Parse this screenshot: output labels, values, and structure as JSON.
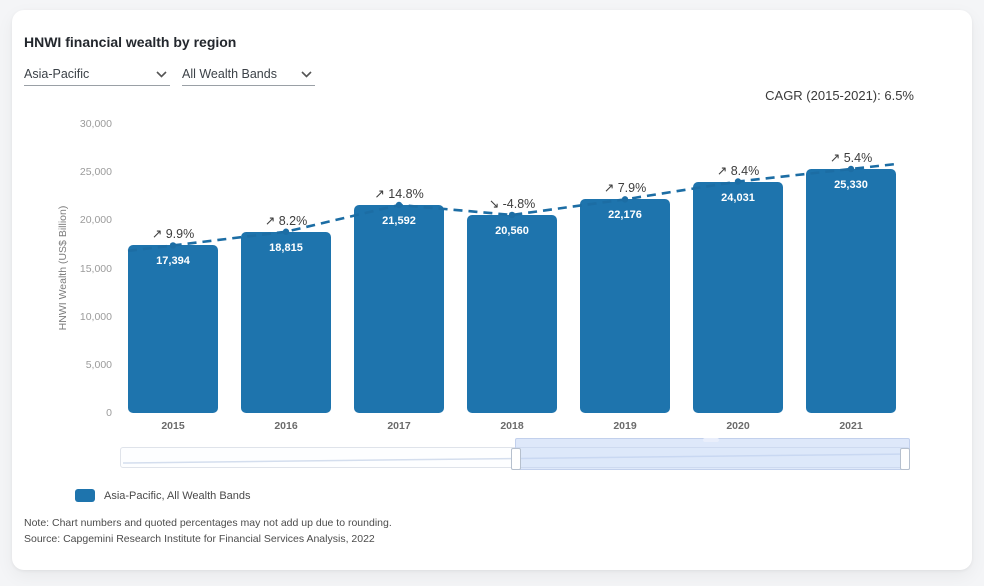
{
  "card": {
    "title": "HNWI financial wealth by region",
    "cagr_label": "CAGR (2015-2021): 6.5%"
  },
  "filters": {
    "region": {
      "value": "Asia-Pacific"
    },
    "wealth_band": {
      "value": "All Wealth Bands"
    }
  },
  "chart_data": {
    "type": "bar",
    "title": "HNWI financial wealth by region",
    "xlabel": "",
    "ylabel": "HNWI Wealth (US$ Billion)",
    "ylim": [
      0,
      30000
    ],
    "yticks": [
      0,
      5000,
      10000,
      15000,
      20000,
      25000,
      30000
    ],
    "ytick_labels": [
      "0",
      "5,000",
      "10,000",
      "15,000",
      "20,000",
      "25,000",
      "30,000"
    ],
    "categories": [
      "2015",
      "2016",
      "2017",
      "2018",
      "2019",
      "2020",
      "2021"
    ],
    "values": [
      17394,
      18815,
      21592,
      20560,
      22176,
      24031,
      25330
    ],
    "value_labels": [
      "17,394",
      "18,815",
      "21,592",
      "20,560",
      "22,176",
      "24,031",
      "25,330"
    ],
    "growth_labels": [
      "↗ 9.9%",
      "↗ 8.2%",
      "↗ 14.8%",
      "↘ -4.8%",
      "↗ 7.9%",
      "↗ 8.4%",
      "↗ 5.4%"
    ],
    "bar_color": "#1e74ad",
    "trend_line": {
      "style": "dashed",
      "color": "#1c6da4",
      "values": [
        17394,
        18815,
        21592,
        20560,
        22176,
        24031,
        25330
      ]
    },
    "grid": false,
    "legend_position": "bottom-left",
    "legend": [
      {
        "label": "Asia-Pacific, All Wealth Bands",
        "color": "#1e74ad"
      }
    ]
  },
  "footer": {
    "note": "Note: Chart numbers and quoted percentages may not add up due to rounding.",
    "source": "Source: Capgemini Research Institute for Financial Services Analysis, 2022"
  }
}
